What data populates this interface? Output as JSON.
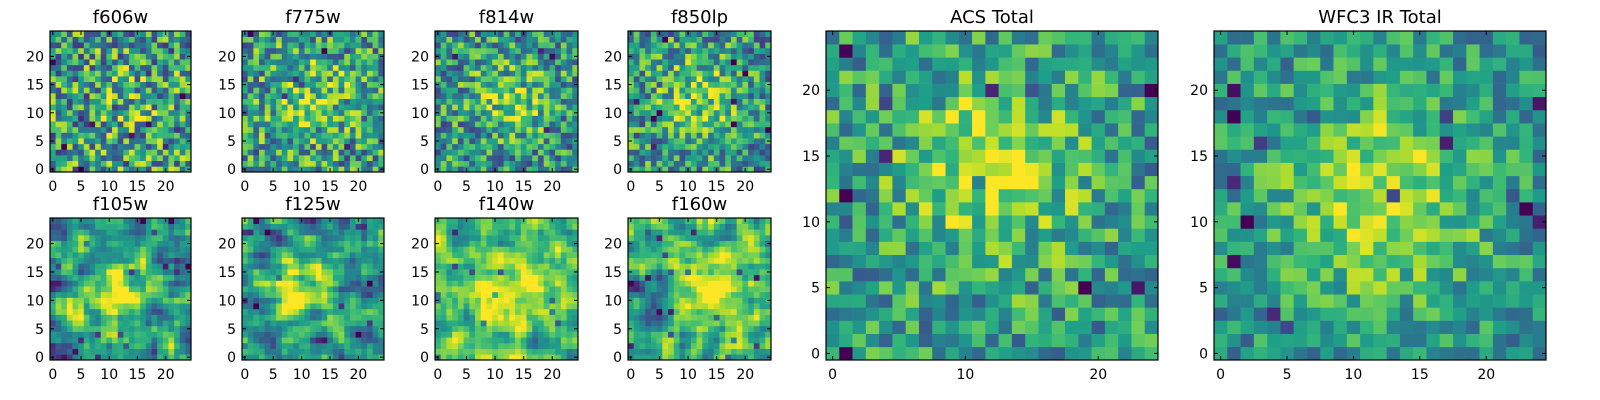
{
  "chart_data": [
    {
      "type": "heatmap",
      "title": "f606w",
      "grid_size": 25,
      "xlim": [
        -0.5,
        24.5
      ],
      "ylim": [
        -0.5,
        24.5
      ],
      "xticks": [
        0,
        5,
        10,
        15,
        20
      ],
      "yticks": [
        0,
        5,
        10,
        15,
        20
      ],
      "colormap": "viridis",
      "pattern": {
        "peak": [
          14,
          12
        ],
        "width": 5,
        "peak_amp": 0.1,
        "base": 0.55,
        "noise": 0.5,
        "smooth": 0
      }
    },
    {
      "type": "heatmap",
      "title": "f775w",
      "grid_size": 25,
      "xlim": [
        -0.5,
        24.5
      ],
      "ylim": [
        -0.5,
        24.5
      ],
      "xticks": [
        0,
        5,
        10,
        15,
        20
      ],
      "yticks": [
        0,
        5,
        10,
        15,
        20
      ],
      "colormap": "viridis",
      "pattern": {
        "peak": [
          12,
          13
        ],
        "width": 5,
        "peak_amp": 0.2,
        "base": 0.55,
        "noise": 0.45,
        "smooth": 0
      }
    },
    {
      "type": "heatmap",
      "title": "f814w",
      "grid_size": 25,
      "xlim": [
        -0.5,
        24.5
      ],
      "ylim": [
        -0.5,
        24.5
      ],
      "xticks": [
        0,
        5,
        10,
        15,
        20
      ],
      "yticks": [
        0,
        5,
        10,
        15,
        20
      ],
      "colormap": "viridis",
      "pattern": {
        "peak": [
          13,
          13
        ],
        "width": 4.5,
        "peak_amp": 0.3,
        "base": 0.52,
        "noise": 0.42,
        "smooth": 0
      }
    },
    {
      "type": "heatmap",
      "title": "f850lp",
      "grid_size": 25,
      "xlim": [
        -0.5,
        24.5
      ],
      "ylim": [
        -0.5,
        24.5
      ],
      "xticks": [
        0,
        5,
        10,
        15,
        20
      ],
      "yticks": [
        0,
        5,
        10,
        15,
        20
      ],
      "colormap": "viridis",
      "pattern": {
        "peak": [
          12,
          13
        ],
        "width": 5,
        "peak_amp": 0.3,
        "base": 0.52,
        "noise": 0.42,
        "smooth": 0
      }
    },
    {
      "type": "heatmap",
      "title": "f105w",
      "grid_size": 25,
      "xlim": [
        -0.5,
        24.5
      ],
      "ylim": [
        -0.5,
        24.5
      ],
      "xticks": [
        0,
        5,
        10,
        15,
        20
      ],
      "yticks": [
        0,
        5,
        10,
        15,
        20
      ],
      "colormap": "viridis",
      "pattern": {
        "peak": [
          10,
          10
        ],
        "width": 5,
        "peak_amp": 0.35,
        "base": 0.5,
        "noise": 0.5,
        "smooth": 1
      }
    },
    {
      "type": "heatmap",
      "title": "f125w",
      "grid_size": 25,
      "xlim": [
        -0.5,
        24.5
      ],
      "ylim": [
        -0.5,
        24.5
      ],
      "xticks": [
        0,
        5,
        10,
        15,
        20
      ],
      "yticks": [
        0,
        5,
        10,
        15,
        20
      ],
      "colormap": "viridis",
      "pattern": {
        "peak": [
          11,
          12
        ],
        "width": 5,
        "peak_amp": 0.4,
        "base": 0.48,
        "noise": 0.5,
        "smooth": 1
      }
    },
    {
      "type": "heatmap",
      "title": "f140w",
      "grid_size": 25,
      "xlim": [
        -0.5,
        24.5
      ],
      "ylim": [
        -0.5,
        24.5
      ],
      "xticks": [
        0,
        5,
        10,
        15,
        20
      ],
      "yticks": [
        0,
        5,
        10,
        15,
        20
      ],
      "colormap": "viridis",
      "pattern": {
        "peak": [
          13,
          12
        ],
        "width": 6,
        "peak_amp": 0.35,
        "base": 0.6,
        "noise": 0.4,
        "smooth": 1
      }
    },
    {
      "type": "heatmap",
      "title": "f160w",
      "grid_size": 25,
      "xlim": [
        -0.5,
        24.5
      ],
      "ylim": [
        -0.5,
        24.5
      ],
      "xticks": [
        0,
        5,
        10,
        15,
        20
      ],
      "yticks": [
        0,
        5,
        10,
        15,
        20
      ],
      "colormap": "viridis",
      "pattern": {
        "peak": [
          14,
          13
        ],
        "width": 6,
        "peak_amp": 0.4,
        "base": 0.55,
        "noise": 0.45,
        "smooth": 1
      }
    },
    {
      "type": "heatmap",
      "title": "ACS Total",
      "grid_size": 25,
      "xlim": [
        -0.5,
        24.5
      ],
      "ylim": [
        -0.5,
        24.5
      ],
      "xticks": [
        0,
        10,
        20
      ],
      "yticks": [
        0,
        5,
        10,
        15,
        20
      ],
      "colormap": "viridis",
      "pattern": {
        "peak": [
          12,
          14
        ],
        "width": 4.5,
        "peak_amp": 0.35,
        "base": 0.55,
        "noise": 0.35,
        "smooth": 0
      }
    },
    {
      "type": "heatmap",
      "title": "WFC3 IR Total",
      "grid_size": 25,
      "xlim": [
        -0.5,
        24.5
      ],
      "ylim": [
        -0.5,
        24.5
      ],
      "xticks": [
        0,
        5,
        10,
        15,
        20
      ],
      "yticks": [
        0,
        5,
        10,
        15,
        20
      ],
      "colormap": "viridis",
      "pattern": {
        "peak": [
          12,
          12
        ],
        "width": 5.5,
        "peak_amp": 0.4,
        "base": 0.5,
        "noise": 0.28,
        "smooth": 0
      }
    }
  ]
}
